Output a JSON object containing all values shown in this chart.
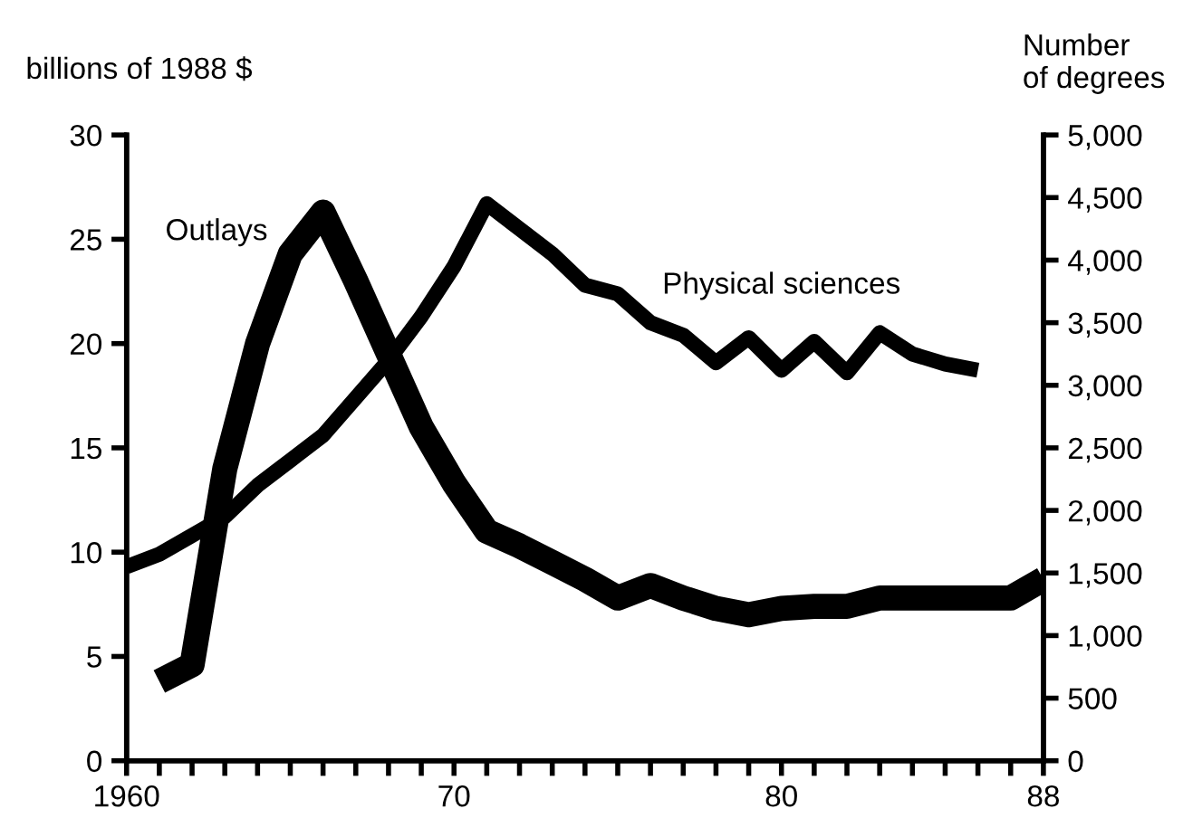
{
  "chart_data": {
    "type": "line",
    "ylabel": "billions of 1988 $",
    "y2label": "Number of degrees",
    "xlim": [
      1960,
      1988
    ],
    "ylim": [
      0,
      30
    ],
    "y2lim": [
      0,
      5000
    ],
    "xticks": [
      {
        "value": 1960,
        "label": "1960"
      },
      {
        "value": 1961,
        "label": null
      },
      {
        "value": 1962,
        "label": null
      },
      {
        "value": 1963,
        "label": null
      },
      {
        "value": 1964,
        "label": null
      },
      {
        "value": 1965,
        "label": null
      },
      {
        "value": 1966,
        "label": null
      },
      {
        "value": 1967,
        "label": null
      },
      {
        "value": 1968,
        "label": null
      },
      {
        "value": 1969,
        "label": null
      },
      {
        "value": 1970,
        "label": "70"
      },
      {
        "value": 1971,
        "label": null
      },
      {
        "value": 1972,
        "label": null
      },
      {
        "value": 1973,
        "label": null
      },
      {
        "value": 1974,
        "label": null
      },
      {
        "value": 1975,
        "label": null
      },
      {
        "value": 1976,
        "label": null
      },
      {
        "value": 1977,
        "label": null
      },
      {
        "value": 1978,
        "label": null
      },
      {
        "value": 1979,
        "label": null
      },
      {
        "value": 1980,
        "label": "80"
      },
      {
        "value": 1981,
        "label": null
      },
      {
        "value": 1982,
        "label": null
      },
      {
        "value": 1983,
        "label": null
      },
      {
        "value": 1984,
        "label": null
      },
      {
        "value": 1985,
        "label": null
      },
      {
        "value": 1986,
        "label": null
      },
      {
        "value": 1987,
        "label": null
      },
      {
        "value": 1988,
        "label": "88"
      }
    ],
    "yticks": [
      0,
      5,
      10,
      15,
      20,
      25,
      30
    ],
    "y2ticks": [
      0,
      500,
      {
        "value": 1000,
        "label": "1,000"
      },
      {
        "value": 1500,
        "label": "1,500"
      },
      {
        "value": 2000,
        "label": "2,000"
      },
      {
        "value": 2500,
        "label": "2,500"
      },
      {
        "value": 3000,
        "label": "3,000"
      },
      {
        "value": 3500,
        "label": "3,500"
      },
      {
        "value": 4000,
        "label": "4,000"
      },
      {
        "value": 4500,
        "label": "4,500"
      },
      {
        "value": 5000,
        "label": "5,000"
      }
    ],
    "grid": false,
    "legend": false,
    "marker": "none",
    "line_style": "solid",
    "series": [
      {
        "name": "Outlays",
        "color": "#000000",
        "x": [
          1961,
          1962,
          1963,
          1964,
          1965,
          1966,
          1967,
          1968,
          1969,
          1970,
          1971,
          1972,
          1973,
          1974,
          1975,
          1976,
          1977,
          1978,
          1979,
          1980,
          1981,
          1982,
          1983,
          1984,
          1985,
          1986,
          1987,
          1988
        ],
        "values": [
          3.8,
          4.6,
          14,
          20,
          24.3,
          26.3,
          23,
          19.5,
          16,
          13.3,
          11,
          10.3,
          9.5,
          8.7,
          7.8,
          8.4,
          7.8,
          7.3,
          7.0,
          7.3,
          7.4,
          7.4,
          7.8,
          7.8,
          7.8,
          7.8,
          7.8,
          8.7
        ]
      },
      {
        "name": "Physical sciences",
        "color": "#000000",
        "axis": "y2",
        "x": [
          1960,
          1961,
          1962,
          1963,
          1964,
          1965,
          1966,
          1967,
          1968,
          1969,
          1970,
          1971,
          1972,
          1973,
          1974,
          1975,
          1976,
          1977,
          1978,
          1979,
          1980,
          1981,
          1982,
          1983,
          1984,
          1985,
          1986
        ],
        "values": [
          1550,
          1650,
          1800,
          1950,
          2200,
          2400,
          2600,
          2900,
          3200,
          3550,
          3950,
          4450,
          4250,
          4050,
          3800,
          3730,
          3500,
          3400,
          3180,
          3380,
          3120,
          3350,
          3100,
          3420,
          3250,
          3170,
          3120
        ]
      }
    ]
  }
}
